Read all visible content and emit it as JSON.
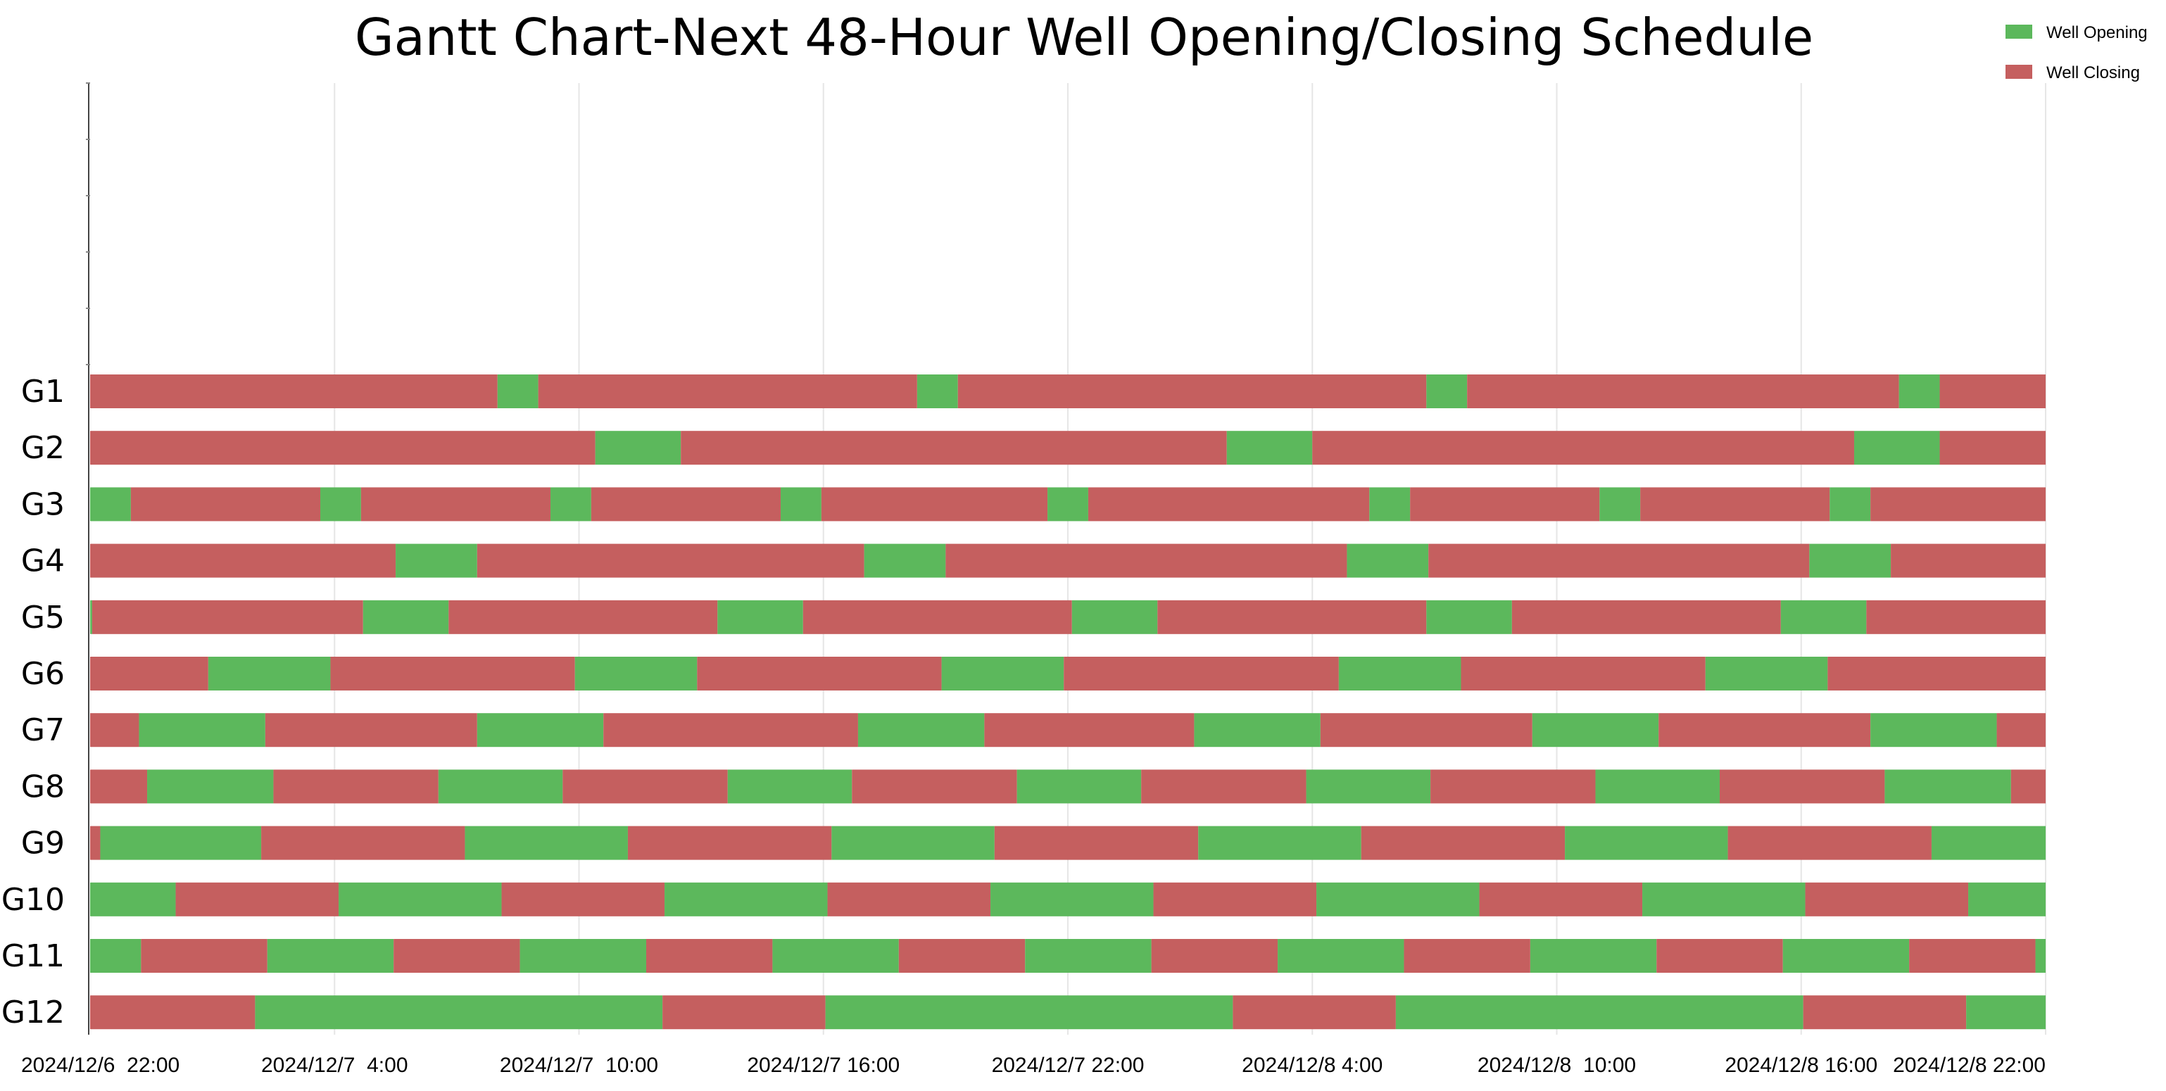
{
  "chart_data": {
    "type": "gantt",
    "title": "Gantt Chart-Next 48-Hour Well Opening/Closing Schedule",
    "legend": {
      "placement": "top-right",
      "entries": [
        {
          "label": "Well Opening",
          "state": "open",
          "color": "#5cb85c"
        },
        {
          "label": "Well Closing",
          "state": "close",
          "color": "#c55f5f"
        }
      ]
    },
    "x_axis": {
      "unit": "hours from 2024/12/6 22:00",
      "range": [
        0,
        48
      ],
      "grid": true,
      "ticks": [
        {
          "value": 0,
          "label": "2024/12/6  22:00"
        },
        {
          "value": 6,
          "label": "2024/12/7  4:00"
        },
        {
          "value": 12,
          "label": "2024/12/7  10:00"
        },
        {
          "value": 18,
          "label": "2024/12/7 16:00"
        },
        {
          "value": 24,
          "label": "2024/12/7 22:00"
        },
        {
          "value": 30,
          "label": "2024/12/8 4:00"
        },
        {
          "value": 36,
          "label": "2024/12/8  10:00"
        },
        {
          "value": 42,
          "label": "2024/12/8 16:00"
        },
        {
          "value": 48,
          "label": "2024/12/8 22:00"
        }
      ]
    },
    "rows": [
      {
        "label": "G1",
        "segments": [
          [
            0,
            10,
            "close"
          ],
          [
            10,
            11,
            "open"
          ],
          [
            11,
            20.3,
            "close"
          ],
          [
            20.3,
            21.3,
            "open"
          ],
          [
            21.3,
            32.8,
            "close"
          ],
          [
            32.8,
            33.8,
            "open"
          ],
          [
            33.8,
            44.4,
            "close"
          ],
          [
            44.4,
            45.4,
            "open"
          ],
          [
            45.4,
            48,
            "close"
          ]
        ]
      },
      {
        "label": "G2",
        "segments": [
          [
            0,
            12.4,
            "close"
          ],
          [
            12.4,
            14.5,
            "open"
          ],
          [
            14.5,
            27.9,
            "close"
          ],
          [
            27.9,
            30,
            "open"
          ],
          [
            30,
            43.3,
            "close"
          ],
          [
            43.3,
            45.4,
            "open"
          ],
          [
            45.4,
            48,
            "close"
          ]
        ]
      },
      {
        "label": "G3",
        "segments": [
          [
            0,
            1,
            "open"
          ],
          [
            1,
            5.65,
            "close"
          ],
          [
            5.65,
            6.65,
            "open"
          ],
          [
            6.65,
            11.3,
            "close"
          ],
          [
            11.3,
            12.3,
            "open"
          ],
          [
            12.3,
            16.95,
            "close"
          ],
          [
            16.95,
            17.95,
            "open"
          ],
          [
            17.95,
            23.5,
            "close"
          ],
          [
            23.5,
            24.5,
            "open"
          ],
          [
            24.5,
            31.4,
            "close"
          ],
          [
            31.4,
            32.4,
            "open"
          ],
          [
            32.4,
            37.05,
            "close"
          ],
          [
            37.05,
            38.05,
            "open"
          ],
          [
            38.05,
            42.7,
            "close"
          ],
          [
            42.7,
            43.7,
            "open"
          ],
          [
            43.7,
            48,
            "close"
          ]
        ]
      },
      {
        "label": "G4",
        "segments": [
          [
            0,
            7.5,
            "close"
          ],
          [
            7.5,
            9.5,
            "open"
          ],
          [
            9.5,
            19,
            "close"
          ],
          [
            19,
            21,
            "open"
          ],
          [
            21,
            30.85,
            "close"
          ],
          [
            30.85,
            32.85,
            "open"
          ],
          [
            32.85,
            42.2,
            "close"
          ],
          [
            42.2,
            44.2,
            "open"
          ],
          [
            44.2,
            48,
            "close"
          ]
        ]
      },
      {
        "label": "G5",
        "segments": [
          [
            0,
            0.05,
            "open"
          ],
          [
            0.05,
            6.7,
            "close"
          ],
          [
            6.7,
            8.8,
            "open"
          ],
          [
            8.8,
            15.4,
            "close"
          ],
          [
            15.4,
            17.5,
            "open"
          ],
          [
            17.5,
            24.1,
            "close"
          ],
          [
            24.1,
            26.2,
            "open"
          ],
          [
            26.2,
            32.8,
            "close"
          ],
          [
            32.8,
            34.9,
            "open"
          ],
          [
            34.9,
            41.5,
            "close"
          ],
          [
            41.5,
            43.6,
            "open"
          ],
          [
            43.6,
            48,
            "close"
          ]
        ]
      },
      {
        "label": "G6",
        "segments": [
          [
            0,
            2.9,
            "close"
          ],
          [
            2.9,
            5.9,
            "open"
          ],
          [
            5.9,
            11.9,
            "close"
          ],
          [
            11.9,
            14.9,
            "open"
          ],
          [
            14.9,
            20.9,
            "close"
          ],
          [
            20.9,
            23.9,
            "open"
          ],
          [
            23.9,
            30.65,
            "close"
          ],
          [
            30.65,
            33.65,
            "open"
          ],
          [
            33.65,
            39.65,
            "close"
          ],
          [
            39.65,
            42.65,
            "open"
          ],
          [
            42.65,
            48,
            "close"
          ]
        ]
      },
      {
        "label": "G7",
        "segments": [
          [
            0,
            1.2,
            "close"
          ],
          [
            1.2,
            4.3,
            "open"
          ],
          [
            4.3,
            9.5,
            "close"
          ],
          [
            9.5,
            12.6,
            "open"
          ],
          [
            12.6,
            18.85,
            "close"
          ],
          [
            18.85,
            21.95,
            "open"
          ],
          [
            21.95,
            27.1,
            "close"
          ],
          [
            27.1,
            30.2,
            "open"
          ],
          [
            30.2,
            35.4,
            "close"
          ],
          [
            35.4,
            38.5,
            "open"
          ],
          [
            38.5,
            43.7,
            "close"
          ],
          [
            43.7,
            46.8,
            "open"
          ],
          [
            46.8,
            48,
            "close"
          ]
        ]
      },
      {
        "label": "G8",
        "segments": [
          [
            0,
            1.4,
            "close"
          ],
          [
            1.4,
            4.5,
            "open"
          ],
          [
            4.5,
            8.55,
            "close"
          ],
          [
            8.55,
            11.6,
            "open"
          ],
          [
            11.6,
            15.65,
            "close"
          ],
          [
            15.65,
            18.7,
            "open"
          ],
          [
            18.7,
            22.75,
            "close"
          ],
          [
            22.75,
            25.8,
            "open"
          ],
          [
            25.8,
            29.85,
            "close"
          ],
          [
            29.85,
            32.9,
            "open"
          ],
          [
            32.9,
            36.95,
            "close"
          ],
          [
            36.95,
            40,
            "open"
          ],
          [
            40,
            44.05,
            "close"
          ],
          [
            44.05,
            47.15,
            "open"
          ],
          [
            47.15,
            48,
            "close"
          ]
        ]
      },
      {
        "label": "G9",
        "segments": [
          [
            0,
            0.25,
            "close"
          ],
          [
            0.25,
            4.2,
            "open"
          ],
          [
            4.2,
            9.2,
            "close"
          ],
          [
            9.2,
            13.2,
            "open"
          ],
          [
            13.2,
            18.2,
            "close"
          ],
          [
            18.2,
            22.2,
            "open"
          ],
          [
            22.2,
            27.2,
            "close"
          ],
          [
            27.2,
            31.2,
            "open"
          ],
          [
            31.2,
            36.2,
            "close"
          ],
          [
            36.2,
            40.2,
            "open"
          ],
          [
            40.2,
            45.2,
            "close"
          ],
          [
            45.2,
            48,
            "open"
          ]
        ]
      },
      {
        "label": "G10",
        "segments": [
          [
            0,
            2.1,
            "open"
          ],
          [
            2.1,
            6.1,
            "close"
          ],
          [
            6.1,
            10.1,
            "open"
          ],
          [
            10.1,
            14.1,
            "close"
          ],
          [
            14.1,
            18.1,
            "open"
          ],
          [
            18.1,
            22.1,
            "close"
          ],
          [
            22.1,
            26.1,
            "open"
          ],
          [
            26.1,
            30.1,
            "close"
          ],
          [
            30.1,
            34.1,
            "open"
          ],
          [
            34.1,
            38.1,
            "close"
          ],
          [
            38.1,
            42.1,
            "open"
          ],
          [
            42.1,
            46.1,
            "close"
          ],
          [
            46.1,
            48,
            "open"
          ]
        ]
      },
      {
        "label": "G11",
        "segments": [
          [
            0,
            1.25,
            "open"
          ],
          [
            1.25,
            4.35,
            "close"
          ],
          [
            4.35,
            7.45,
            "open"
          ],
          [
            7.45,
            10.55,
            "close"
          ],
          [
            10.55,
            13.65,
            "open"
          ],
          [
            13.65,
            16.75,
            "close"
          ],
          [
            16.75,
            19.85,
            "open"
          ],
          [
            19.85,
            22.95,
            "close"
          ],
          [
            22.95,
            26.05,
            "open"
          ],
          [
            26.05,
            29.15,
            "close"
          ],
          [
            29.15,
            32.25,
            "open"
          ],
          [
            32.25,
            35.35,
            "close"
          ],
          [
            35.35,
            38.45,
            "open"
          ],
          [
            38.45,
            41.55,
            "close"
          ],
          [
            41.55,
            44.65,
            "open"
          ],
          [
            44.65,
            47.75,
            "close"
          ],
          [
            47.75,
            48,
            "open"
          ]
        ]
      },
      {
        "label": "G12",
        "segments": [
          [
            0,
            4.05,
            "close"
          ],
          [
            4.05,
            14.05,
            "open"
          ],
          [
            14.05,
            18.05,
            "close"
          ],
          [
            18.05,
            28.05,
            "open"
          ],
          [
            28.05,
            32.05,
            "close"
          ],
          [
            32.05,
            42.05,
            "open"
          ],
          [
            42.05,
            46.05,
            "close"
          ],
          [
            46.05,
            48,
            "open"
          ]
        ]
      }
    ]
  }
}
